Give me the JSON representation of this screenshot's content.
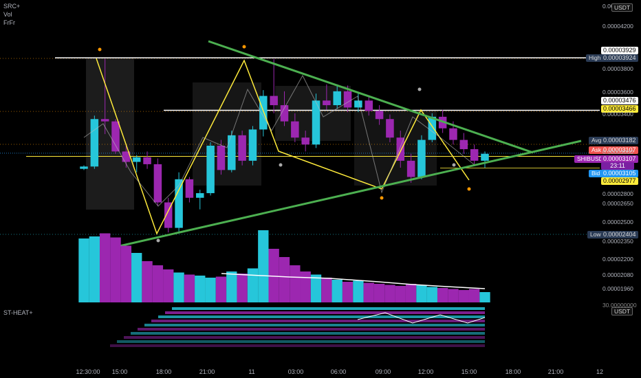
{
  "indicators": {
    "src": "SRC+",
    "vol": "Vol",
    "frfr": "FrFr",
    "heat": "ST-HEAT+"
  },
  "price_unit": "USDT",
  "heat_unit": "USDT",
  "heat_top": "30.00000000",
  "axis_top": "0.00",
  "tags": {
    "t3929": "0.00003929",
    "high_label": "High",
    "high_value": "0.00003924",
    "t3476": "0.00003476",
    "t3466": "0.00003466",
    "avg_label": "Avg",
    "avg_value": "0.00003182",
    "ask_label": "Ask",
    "ask_value": "0.00003107",
    "symbol_label": "SHIBUSDT",
    "symbol_value": "0.00003107",
    "countdown": "23:11",
    "bid_label": "Bid",
    "bid_value": "0.00003105",
    "t2977": "0.00002977",
    "low_label": "Low",
    "low_value": "0.00002404"
  },
  "colors": {
    "up": "#26c6da",
    "down": "#9c27b0",
    "trend": "#4caf50",
    "zigzag": "#ffeb3b",
    "level": "#ffffff"
  },
  "chart_data": {
    "type": "candlestick",
    "y_axis_ticks": [
      "0.00004200",
      "0.00003800",
      "0.00003600",
      "0.00003400",
      "0.00003000",
      "0.00002800",
      "0.00002650",
      "0.00002500",
      "0.00002350",
      "0.00002200",
      "0.00002080",
      "0.00001960"
    ],
    "x_axis_ticks": [
      "12:30:00",
      "15:00",
      "18:00",
      "21:00",
      "11",
      "03:00",
      "06:00",
      "09:00",
      "12:00",
      "15:00",
      "18:00",
      "21:00",
      "12"
    ],
    "horizontal_levels": [
      3.929e-05,
      3.924e-05,
      3.476e-05,
      3.466e-05,
      3.182e-05,
      3.107e-05,
      2.977e-05,
      2.404e-05
    ],
    "candles_ohlc": [
      [
        2.97e-05,
        3e-05,
        2.96e-05,
        2.99e-05
      ],
      [
        2.99e-05,
        3.43e-05,
        2.97e-05,
        3.4e-05
      ],
      [
        3.4e-05,
        3.92e-05,
        3.27e-05,
        3.38e-05
      ],
      [
        3.38e-05,
        3.4e-05,
        3.1e-05,
        3.12e-05
      ],
      [
        3.12e-05,
        3.18e-05,
        2.98e-05,
        3.03e-05
      ],
      [
        3.03e-05,
        3.09e-05,
        2.94e-05,
        3.07e-05
      ],
      [
        3.07e-05,
        3.12e-05,
        2.97e-05,
        3.01e-05
      ],
      [
        3.01e-05,
        3.06e-05,
        2.65e-05,
        2.68e-05
      ],
      [
        2.68e-05,
        2.72e-05,
        2.42e-05,
        2.46e-05
      ],
      [
        2.46e-05,
        2.94e-05,
        2.43e-05,
        2.88e-05
      ],
      [
        2.88e-05,
        2.9e-05,
        2.68e-05,
        2.72e-05
      ],
      [
        2.72e-05,
        2.79e-05,
        2.62e-05,
        2.76e-05
      ],
      [
        2.76e-05,
        3.2e-05,
        2.74e-05,
        3.17e-05
      ],
      [
        3.17e-05,
        3.22e-05,
        2.92e-05,
        2.96e-05
      ],
      [
        2.96e-05,
        3.3e-05,
        2.94e-05,
        3.26e-05
      ],
      [
        3.26e-05,
        3.3e-05,
        3e-05,
        3.04e-05
      ],
      [
        3.04e-05,
        3.34e-05,
        3e-05,
        3.31e-05
      ],
      [
        3.31e-05,
        3.65e-05,
        3.25e-05,
        3.6e-05
      ],
      [
        3.6e-05,
        3.92e-05,
        3.45e-05,
        3.52e-05
      ],
      [
        3.52e-05,
        3.64e-05,
        3.34e-05,
        3.38e-05
      ],
      [
        3.38e-05,
        3.45e-05,
        3.2e-05,
        3.24e-05
      ],
      [
        3.24e-05,
        3.3e-05,
        3.12e-05,
        3.18e-05
      ],
      [
        3.18e-05,
        3.62e-05,
        3.15e-05,
        3.56e-05
      ],
      [
        3.56e-05,
        3.7e-05,
        3.48e-05,
        3.52e-05
      ],
      [
        3.52e-05,
        3.7e-05,
        3.49e-05,
        3.64e-05
      ],
      [
        3.64e-05,
        3.69e-05,
        3.46e-05,
        3.5e-05
      ],
      [
        3.5e-05,
        3.62e-05,
        3.46e-05,
        3.56e-05
      ],
      [
        3.56e-05,
        3.59e-05,
        3.43e-05,
        3.47e-05
      ],
      [
        3.47e-05,
        3.52e-05,
        3.35e-05,
        3.4e-05
      ],
      [
        3.4e-05,
        3.44e-05,
        3.2e-05,
        3.24e-05
      ],
      [
        3.24e-05,
        3.3e-05,
        2.98e-05,
        3.04e-05
      ],
      [
        3.04e-05,
        3.1e-05,
        2.85e-05,
        2.9e-05
      ],
      [
        2.9e-05,
        3.26e-05,
        2.88e-05,
        3.22e-05
      ],
      [
        3.22e-05,
        3.45e-05,
        3.2e-05,
        3.42e-05
      ],
      [
        3.42e-05,
        3.48e-05,
        3.28e-05,
        3.32e-05
      ],
      [
        3.32e-05,
        3.38e-05,
        3.18e-05,
        3.22e-05
      ],
      [
        3.22e-05,
        3.28e-05,
        3.1e-05,
        3.14e-05
      ],
      [
        3.14e-05,
        3.18e-05,
        3e-05,
        3.04e-05
      ],
      [
        3.04e-05,
        3.12e-05,
        2.98e-05,
        3.1e-05
      ]
    ],
    "volume": [
      62,
      64,
      67,
      63,
      55,
      48,
      40,
      36,
      32,
      29,
      27,
      26,
      24,
      25,
      30,
      28,
      33,
      70,
      52,
      44,
      36,
      30,
      27,
      24,
      22,
      20,
      21,
      19,
      18,
      17,
      16,
      18,
      17,
      15,
      14,
      13,
      12,
      13,
      10
    ]
  }
}
